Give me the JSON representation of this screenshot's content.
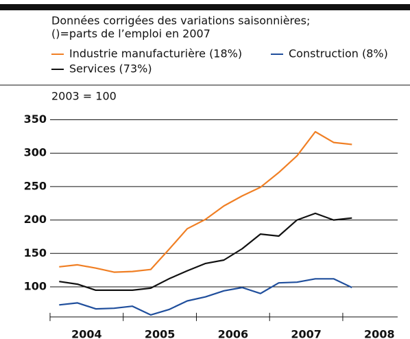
{
  "chart_data": {
    "type": "line",
    "subtitle": [
      "Données corrigées des variations saisonnières;",
      "()=parts de l’emploi en 2007"
    ],
    "y_label": "2003 = 100",
    "x": [
      2004.125,
      2004.375,
      2004.625,
      2004.875,
      2005.125,
      2005.375,
      2005.625,
      2005.875,
      2006.125,
      2006.375,
      2006.625,
      2006.875,
      2007.125,
      2007.375,
      2007.625,
      2007.875,
      2008.125
    ],
    "series": [
      {
        "name": "Industrie manufacturière (18%)",
        "color": "#f07f24",
        "values": [
          130,
          133,
          128,
          122,
          123,
          126,
          156,
          187,
          201,
          221,
          236,
          249,
          271,
          296,
          332,
          316,
          313
        ]
      },
      {
        "name": "Construction (8%)",
        "color": "#1f4e9c",
        "values": [
          73,
          76,
          67,
          68,
          71,
          58,
          66,
          79,
          85,
          94,
          99,
          90,
          106,
          107,
          112,
          112,
          99
        ]
      },
      {
        "name": "Services (73%)",
        "color": "#111111",
        "values": [
          108,
          104,
          95,
          95,
          95,
          98,
          112,
          124,
          135,
          140,
          157,
          179,
          176,
          200,
          210,
          200,
          203
        ]
      }
    ],
    "xlim": [
      2004,
      2008.75
    ],
    "xticks": [
      2004,
      2005,
      2006,
      2007,
      2008
    ],
    "ylim": [
      55,
      355
    ],
    "yticks": [
      100,
      150,
      200,
      250,
      300,
      350
    ],
    "grid": true
  }
}
